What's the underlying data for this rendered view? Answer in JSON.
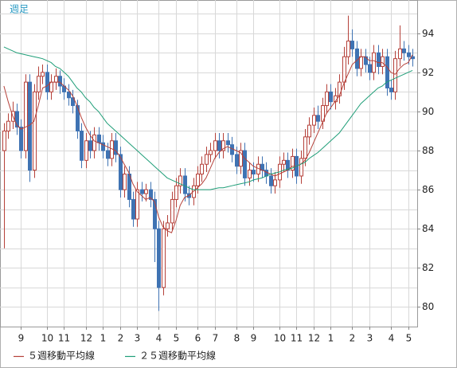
{
  "chart_data": {
    "type": "candlestick",
    "title": "週足",
    "up_color": "#b5413a",
    "down_color": "#3f73b3",
    "open": [
      88.0,
      89.0,
      89.5,
      90.0,
      89.2,
      88.0,
      91.5,
      87.0,
      91.0,
      91.8,
      92.0,
      91.0,
      91.5,
      91.8,
      91.3,
      91.0,
      90.7,
      90.3,
      89.0,
      87.5,
      88.5,
      88.0,
      88.8,
      88.4,
      88.0,
      87.6,
      88.5,
      87.8,
      86.0,
      86.8,
      85.5,
      84.5,
      86.0,
      85.8,
      86.0,
      85.5,
      84.0,
      81.0,
      84.0,
      84.3,
      85.5,
      86.2,
      86.7,
      85.8,
      85.6,
      86.2,
      86.8,
      87.3,
      87.8,
      88.0,
      88.5,
      88.0,
      88.5,
      88.3,
      87.8,
      87.2,
      88.0,
      86.6,
      87.0,
      86.8,
      87.3,
      87.0,
      86.7,
      86.2,
      86.5,
      87.3,
      87.5,
      87.0,
      87.7,
      86.7,
      87.6,
      88.7,
      89.3,
      89.8,
      89.5,
      90.3,
      91.0,
      90.5,
      90.8,
      91.5,
      92.8,
      93.6,
      93.2,
      92.2,
      92.8,
      92.4,
      92.0,
      93.0,
      92.3,
      92.8,
      91.2,
      91.0,
      92.7,
      93.2,
      93.0,
      92.8
    ],
    "high": [
      89.4,
      89.9,
      90.5,
      90.4,
      89.6,
      91.9,
      91.9,
      91.4,
      92.3,
      92.4,
      92.4,
      91.9,
      92.2,
      92.1,
      91.7,
      91.4,
      91.1,
      90.6,
      89.4,
      88.9,
      89.0,
      89.2,
      89.2,
      88.8,
      88.4,
      88.9,
      88.9,
      88.2,
      87.2,
      87.2,
      85.9,
      86.4,
      86.4,
      86.3,
      86.4,
      85.9,
      84.4,
      84.4,
      84.7,
      85.9,
      86.6,
      87.1,
      87.1,
      86.2,
      86.6,
      87.2,
      87.7,
      88.2,
      88.4,
      88.9,
      88.9,
      88.9,
      88.9,
      88.7,
      88.2,
      88.4,
      88.4,
      87.4,
      87.4,
      87.7,
      87.7,
      87.4,
      87.1,
      86.9,
      87.7,
      87.9,
      87.9,
      88.1,
      88.1,
      88.0,
      89.1,
      89.7,
      90.2,
      90.3,
      90.7,
      91.4,
      91.4,
      91.2,
      91.9,
      93.3,
      94.9,
      94.2,
      93.6,
      93.2,
      93.2,
      92.8,
      93.4,
      93.4,
      93.2,
      93.2,
      91.6,
      93.1,
      94.4,
      93.6,
      93.4,
      93.2
    ],
    "low": [
      83.0,
      88.6,
      89.1,
      88.8,
      87.6,
      87.6,
      86.4,
      86.6,
      90.6,
      91.4,
      90.6,
      90.6,
      91.1,
      90.9,
      90.6,
      90.3,
      89.9,
      88.6,
      87.1,
      87.1,
      87.6,
      87.6,
      88.0,
      87.6,
      87.2,
      87.2,
      87.4,
      85.6,
      85.6,
      85.1,
      84.1,
      84.1,
      85.4,
      85.4,
      85.1,
      82.3,
      79.8,
      80.6,
      83.6,
      83.9,
      85.1,
      85.8,
      85.4,
      85.2,
      85.2,
      85.8,
      86.4,
      86.9,
      87.4,
      87.6,
      87.6,
      87.6,
      87.9,
      87.4,
      86.8,
      86.8,
      86.2,
      86.2,
      86.4,
      86.4,
      86.6,
      86.3,
      85.8,
      85.8,
      86.1,
      86.9,
      86.6,
      86.6,
      86.3,
      86.3,
      87.2,
      88.3,
      88.9,
      89.1,
      89.1,
      89.9,
      90.1,
      90.1,
      90.4,
      91.1,
      92.4,
      92.8,
      91.8,
      91.8,
      92.0,
      91.6,
      91.6,
      91.9,
      91.9,
      90.8,
      90.6,
      90.6,
      92.3,
      92.6,
      92.4,
      92.3
    ],
    "close": [
      89.0,
      89.5,
      90.0,
      89.2,
      88.0,
      91.5,
      87.0,
      91.0,
      91.8,
      92.0,
      91.0,
      91.5,
      91.8,
      91.3,
      91.0,
      90.7,
      90.3,
      89.0,
      87.5,
      88.5,
      88.0,
      88.8,
      88.4,
      88.0,
      87.6,
      88.5,
      87.8,
      86.0,
      86.8,
      85.5,
      84.5,
      86.0,
      85.8,
      86.0,
      85.5,
      84.0,
      81.0,
      84.0,
      84.3,
      85.5,
      86.2,
      86.7,
      85.8,
      85.6,
      86.2,
      86.8,
      87.3,
      87.8,
      88.0,
      88.5,
      88.0,
      88.5,
      88.3,
      87.8,
      87.2,
      88.0,
      86.6,
      87.0,
      86.8,
      87.3,
      87.0,
      86.7,
      86.2,
      86.5,
      87.3,
      87.5,
      87.0,
      87.7,
      86.7,
      87.6,
      88.7,
      89.3,
      89.8,
      89.5,
      90.3,
      91.0,
      90.5,
      90.8,
      91.5,
      92.8,
      93.6,
      93.2,
      92.2,
      92.8,
      92.4,
      92.0,
      93.0,
      92.3,
      92.8,
      91.2,
      91.0,
      92.7,
      93.2,
      93.0,
      92.8,
      92.7
    ],
    "series": [
      {
        "name": "５週移動平均線",
        "color": "#b5413a",
        "values": [
          91.3,
          90.5,
          89.8,
          89.3,
          89.1,
          89.2,
          89.3,
          89.5,
          90.3,
          91.2,
          91.3,
          91.5,
          91.5,
          91.5,
          91.3,
          91.1,
          90.8,
          90.3,
          89.7,
          89.2,
          88.8,
          88.5,
          88.4,
          88.3,
          88.2,
          88.1,
          88.0,
          87.7,
          87.3,
          86.9,
          86.3,
          85.9,
          85.7,
          85.5,
          85.6,
          85.4,
          84.6,
          84.1,
          83.9,
          83.8,
          84.4,
          85.2,
          85.6,
          85.7,
          85.9,
          86.1,
          86.3,
          86.6,
          87.1,
          87.6,
          87.9,
          88.1,
          88.2,
          88.1,
          88.0,
          87.9,
          87.6,
          87.4,
          87.2,
          87.1,
          87.0,
          86.9,
          86.8,
          86.7,
          86.8,
          86.9,
          87.0,
          87.2,
          87.2,
          87.3,
          87.5,
          87.9,
          88.4,
          88.9,
          89.4,
          89.9,
          90.2,
          90.5,
          90.8,
          91.4,
          91.9,
          92.4,
          92.6,
          92.8,
          92.8,
          92.6,
          92.6,
          92.5,
          92.5,
          92.3,
          92.0,
          91.9,
          92.2,
          92.4,
          92.5,
          92.9
        ]
      },
      {
        "name": "２５週移動平均線",
        "color": "#1f9e78",
        "values": [
          93.3,
          93.2,
          93.1,
          93.0,
          92.95,
          92.9,
          92.85,
          92.8,
          92.75,
          92.7,
          92.6,
          92.5,
          92.3,
          92.2,
          92.0,
          91.8,
          91.5,
          91.2,
          91.0,
          90.7,
          90.5,
          90.2,
          90.0,
          89.7,
          89.4,
          89.2,
          89.0,
          88.8,
          88.6,
          88.4,
          88.2,
          88.0,
          87.8,
          87.6,
          87.4,
          87.2,
          87.0,
          86.8,
          86.6,
          86.5,
          86.4,
          86.3,
          86.2,
          86.1,
          86.0,
          86.0,
          86.0,
          86.0,
          86.0,
          86.05,
          86.1,
          86.1,
          86.15,
          86.2,
          86.25,
          86.3,
          86.35,
          86.4,
          86.5,
          86.55,
          86.6,
          86.7,
          86.8,
          86.85,
          86.9,
          87.0,
          87.05,
          87.1,
          87.2,
          87.3,
          87.4,
          87.6,
          87.75,
          87.9,
          88.1,
          88.3,
          88.5,
          88.7,
          88.9,
          89.2,
          89.5,
          89.8,
          90.1,
          90.4,
          90.6,
          90.8,
          91.0,
          91.2,
          91.3,
          91.5,
          91.6,
          91.7,
          91.8,
          91.9,
          92.0,
          92.1
        ]
      }
    ],
    "ylim": [
      79.0,
      95.7
    ],
    "yticks": [
      80,
      82,
      84,
      86,
      88,
      90,
      92,
      94
    ],
    "grid_minor": [
      79,
      81,
      83,
      85,
      87,
      89,
      91,
      93,
      95
    ],
    "xticks": [
      {
        "value": 4,
        "label": "9"
      },
      {
        "value": 10,
        "label": "10"
      },
      {
        "value": 14,
        "label": "11"
      },
      {
        "value": 19,
        "label": "12"
      },
      {
        "value": 23,
        "label": "1"
      },
      {
        "value": 27,
        "label": "2"
      },
      {
        "value": 31,
        "label": "3"
      },
      {
        "value": 36,
        "label": "4"
      },
      {
        "value": 40,
        "label": "5"
      },
      {
        "value": 45,
        "label": "6"
      },
      {
        "value": 49,
        "label": "7"
      },
      {
        "value": 54,
        "label": "8"
      },
      {
        "value": 58,
        "label": "9"
      },
      {
        "value": 64,
        "label": "10"
      },
      {
        "value": 68,
        "label": "11"
      },
      {
        "value": 72,
        "label": "12"
      },
      {
        "value": 76,
        "label": "1"
      },
      {
        "value": 81,
        "label": "2"
      },
      {
        "value": 85,
        "label": "3"
      },
      {
        "value": 90,
        "label": "4"
      },
      {
        "value": 94,
        "label": "5"
      }
    ],
    "grid": true
  }
}
